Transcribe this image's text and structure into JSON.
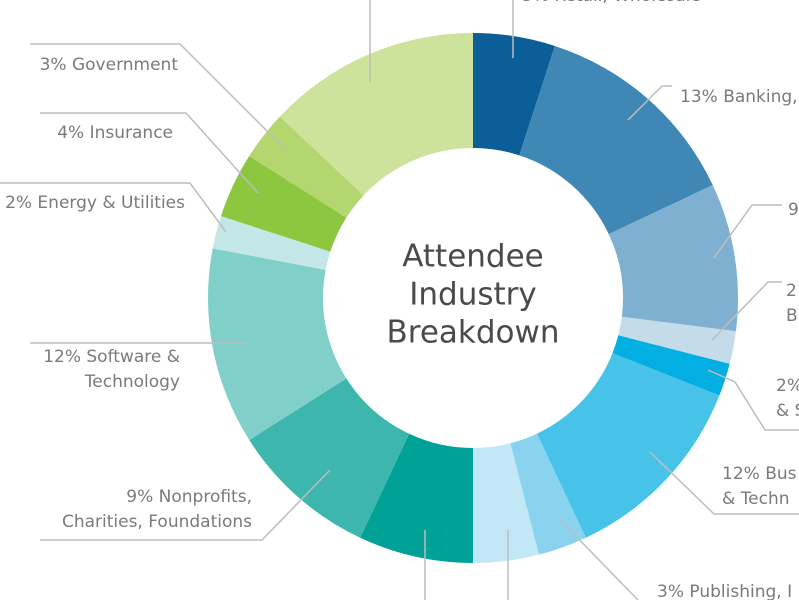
{
  "chart_data": {
    "type": "donut",
    "title": [
      "Attendee",
      "Industry",
      "Breakdown"
    ],
    "labels": [
      [
        "5% Retail, Wholesale"
      ],
      [
        "13% Banking,"
      ],
      [
        "9"
      ],
      [
        "2",
        "B"
      ],
      [
        "2%",
        "& S"
      ],
      [
        "12% Bus",
        "& Techn"
      ],
      [
        "3% Publishing, I"
      ],
      null,
      null,
      [
        "9% Nonprofits,",
        "Charities, Foundations"
      ],
      [
        "12% Software &",
        "Technology"
      ],
      [
        "2% Energy & Utilities"
      ],
      [
        "4% Insurance"
      ],
      [
        "3% Government"
      ],
      null
    ],
    "values": [
      5,
      13,
      9,
      2,
      2,
      12,
      3,
      4,
      7,
      9,
      12,
      2,
      4,
      3,
      13
    ],
    "colors": [
      "#0b5e98",
      "#3f88b6",
      "#80b0d1",
      "#c4dbe9",
      "#03aee2",
      "#47c3e9",
      "#8ad3ef",
      "#c2e7f7",
      "#00a196",
      "#3db7ad",
      "#80cfc9",
      "#c3e6e7",
      "#8dc63f",
      "#b4d66f",
      "#cde29b"
    ]
  }
}
